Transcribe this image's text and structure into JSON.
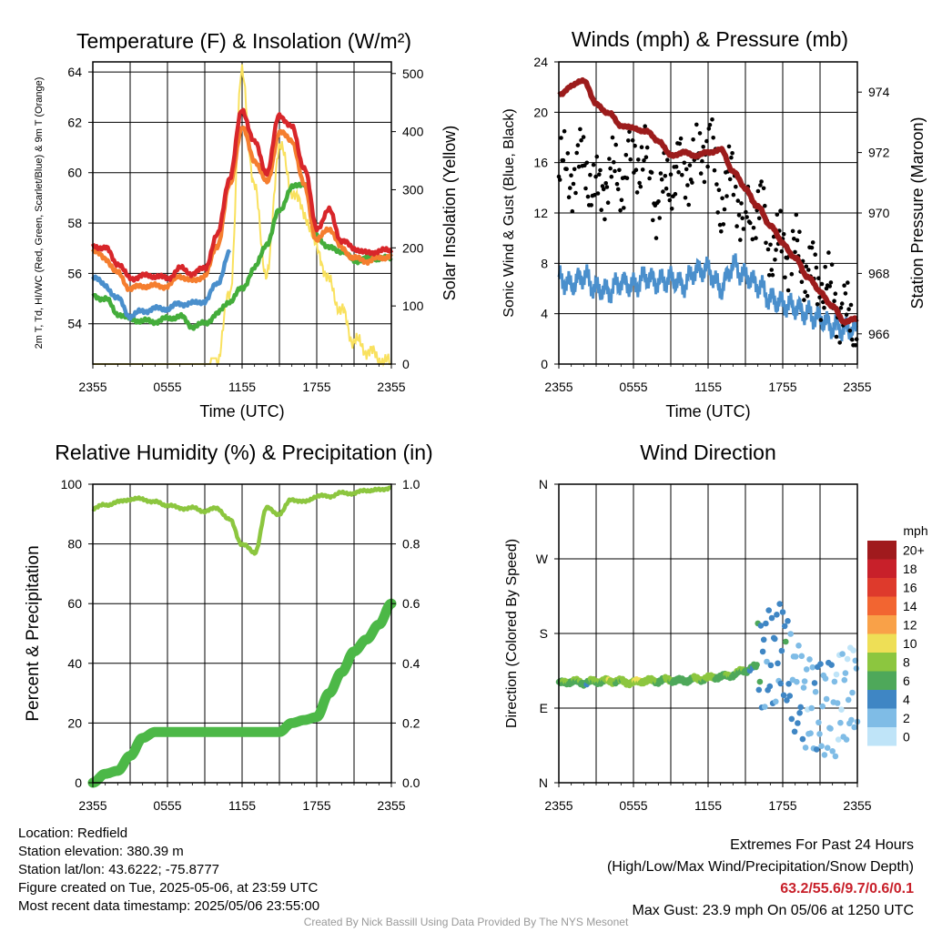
{
  "colors": {
    "temp": "#d8262a",
    "hiwc": "#f57e2f",
    "dew": "#44ad3b",
    "wetbulb": "#4a8fcc",
    "solar": "#f9e15e",
    "wind": "#4a8fcc",
    "gust": "#000000",
    "pressure": "#9c1c1c",
    "rh": "#8cc63f",
    "precip": "#4cb847"
  },
  "wind_colorbar": {
    "title": "mph",
    "labels": [
      "20+",
      "18",
      "16",
      "14",
      "12",
      "10",
      "8",
      "6",
      "4",
      "2",
      "0"
    ],
    "colors": [
      "#a01a1d",
      "#c8202a",
      "#de3a2c",
      "#f26531",
      "#f9a148",
      "#eedf56",
      "#8cc63f",
      "#4ea85a",
      "#3f86c4",
      "#7fbce6",
      "#bfe4f8"
    ]
  },
  "chart_data": [
    {
      "type": "line",
      "title": "Temperature (F) & Insolation (W/m²)",
      "xlabel": "Time (UTC)",
      "ylabel": "2m T, Td, HI/WC (Red, Green, Scarlet/Blue) & 9m T (Orange)",
      "ylabel_right": "Solar Insolation (Yellow)",
      "x_ticks": [
        "2355",
        "0555",
        "1155",
        "1755",
        "2355"
      ],
      "ylim": [
        52.4,
        64.4
      ],
      "y_ticks": [
        54,
        56,
        58,
        60,
        62,
        64
      ],
      "ylim_right": [
        0,
        520
      ],
      "y_ticks_right": [
        0,
        100,
        200,
        300,
        400,
        500
      ],
      "x_hours": [
        0,
        1,
        2,
        3,
        4,
        5,
        6,
        7,
        8,
        9,
        10,
        11,
        12,
        13,
        14,
        15,
        16,
        17,
        18,
        19,
        20,
        21,
        22,
        23,
        24
      ],
      "series": [
        {
          "name": "2m T",
          "values": [
            57.1,
            57.0,
            56.4,
            55.8,
            55.9,
            55.9,
            55.8,
            56.2,
            56.0,
            56.2,
            57.5,
            59.8,
            62.5,
            61.2,
            60.0,
            62.3,
            61.8,
            60.2,
            57.8,
            58.5,
            57.3,
            57.0,
            56.8,
            56.9,
            56.9
          ]
        },
        {
          "name": "9m T",
          "values": [
            56.9,
            56.6,
            56.0,
            55.4,
            55.5,
            55.5,
            55.5,
            55.9,
            55.7,
            55.9,
            57.1,
            59.5,
            61.8,
            60.5,
            59.6,
            61.6,
            61.3,
            59.5,
            57.3,
            57.8,
            57.0,
            56.6,
            56.5,
            56.6,
            56.7
          ]
        },
        {
          "name": "Td",
          "values": [
            55.1,
            55.0,
            54.4,
            54.2,
            54.1,
            54.1,
            54.2,
            54.3,
            53.9,
            54.0,
            54.4,
            54.9,
            55.4,
            56.2,
            57.2,
            58.5,
            59.4,
            59.6,
            57.5,
            57.0,
            56.9,
            56.5,
            56.6,
            56.6,
            56.6
          ]
        },
        {
          "name": "HI/WC",
          "values": [
            55.9,
            55.5,
            55.0,
            54.3,
            54.5,
            54.6,
            54.6,
            54.8,
            54.8,
            54.9,
            55.6,
            56.8,
            null,
            null,
            null,
            null,
            null,
            null,
            null,
            null,
            null,
            null,
            null,
            null,
            null
          ]
        },
        {
          "name": "Solar Insolation",
          "values": [
            0,
            0,
            0,
            0,
            0,
            0,
            0,
            0,
            0,
            0,
            10,
            120,
            500,
            300,
            150,
            380,
            300,
            260,
            200,
            140,
            90,
            40,
            25,
            10,
            0
          ]
        }
      ]
    },
    {
      "type": "line",
      "title": "Winds (mph) & Pressure (mb)",
      "xlabel": "Time (UTC)",
      "ylabel": "Sonic Wind & Gust (Blue, Black)",
      "ylabel_right": "Station Pressure (Maroon)",
      "x_ticks": [
        "2355",
        "0555",
        "1155",
        "1755",
        "2355"
      ],
      "ylim": [
        0,
        24
      ],
      "y_ticks": [
        0,
        4,
        8,
        12,
        16,
        20,
        24
      ],
      "ylim_right": [
        965.0,
        975.0
      ],
      "y_ticks_right": [
        966,
        968,
        970,
        972,
        974
      ],
      "x_hours": [
        0,
        1,
        2,
        3,
        4,
        5,
        6,
        7,
        8,
        9,
        10,
        11,
        12,
        13,
        14,
        15,
        16,
        17,
        18,
        19,
        20,
        21,
        22,
        23,
        24
      ],
      "series": [
        {
          "name": "Sonic Wind",
          "values": [
            6.8,
            6.3,
            7.0,
            6.0,
            5.8,
            6.5,
            6.2,
            6.9,
            6.5,
            6.8,
            6.3,
            7.4,
            7.5,
            6.0,
            7.8,
            7.0,
            6.3,
            5.2,
            4.8,
            4.5,
            4.0,
            3.6,
            3.0,
            2.8,
            2.7
          ]
        },
        {
          "name": "Gust",
          "values": [
            15.5,
            15.2,
            16.1,
            13.5,
            15.0,
            14.8,
            16.5,
            16.0,
            12.8,
            15.0,
            15.5,
            15.8,
            18.0,
            13.0,
            14.8,
            11.0,
            13.0,
            9.5,
            9.2,
            8.8,
            7.5,
            6.5,
            5.5,
            3.8,
            3.5
          ]
        },
        {
          "name": "Station Pressure",
          "values": [
            973.9,
            974.2,
            974.4,
            973.6,
            973.3,
            972.9,
            972.8,
            972.7,
            972.4,
            971.9,
            972.0,
            971.9,
            972.0,
            972.1,
            971.4,
            970.8,
            970.2,
            969.6,
            969.0,
            968.5,
            967.9,
            967.4,
            966.9,
            966.4,
            966.5
          ]
        }
      ]
    },
    {
      "type": "line",
      "title": "Relative Humidity (%) & Precipitation (in)",
      "ylabel": "Percent & Precipitation",
      "x_ticks": [
        "2355",
        "0555",
        "1155",
        "1755",
        "2355"
      ],
      "ylim": [
        0,
        100
      ],
      "y_ticks": [
        0,
        20,
        40,
        60,
        80,
        100
      ],
      "ylim_right": [
        0,
        1.0
      ],
      "y_ticks_right": [
        "0.0",
        "0.2",
        "0.4",
        "0.6",
        "0.8",
        "1.0"
      ],
      "x_hours": [
        0,
        1,
        2,
        3,
        4,
        5,
        6,
        7,
        8,
        9,
        10,
        11,
        12,
        13,
        14,
        15,
        16,
        17,
        18,
        19,
        20,
        21,
        22,
        23,
        24
      ],
      "series": [
        {
          "name": "Relative Humidity",
          "values": [
            92,
            93,
            94,
            95,
            95,
            94,
            93,
            92,
            92,
            91,
            92,
            88,
            80,
            77,
            92,
            90,
            95,
            94,
            96,
            96,
            97,
            97,
            98,
            98,
            99
          ]
        },
        {
          "name": "Precipitation",
          "values": [
            0.0,
            0.03,
            0.04,
            0.09,
            0.15,
            0.17,
            0.17,
            0.17,
            0.17,
            0.17,
            0.17,
            0.17,
            0.17,
            0.17,
            0.17,
            0.17,
            0.2,
            0.21,
            0.22,
            0.3,
            0.37,
            0.44,
            0.48,
            0.53,
            0.6
          ]
        }
      ]
    },
    {
      "type": "scatter",
      "title": "Wind Direction",
      "ylabel": "Direction (Colored By Speed)",
      "x_ticks": [
        "2355",
        "0555",
        "1155",
        "1755",
        "2355"
      ],
      "y_ticks": [
        "N",
        "E",
        "S",
        "W",
        "N"
      ],
      "ylim": [
        0,
        360
      ],
      "x_hours": [
        0,
        1,
        2,
        3,
        4,
        5,
        6,
        7,
        8,
        9,
        10,
        11,
        12,
        13,
        14,
        15,
        16,
        17,
        18,
        19,
        20,
        21,
        22,
        23,
        24
      ],
      "series": [
        {
          "name": "Direction",
          "values": [
            120,
            122,
            121,
            122,
            123,
            122,
            121,
            123,
            123,
            124,
            123,
            125,
            126,
            128,
            130,
            136,
            140,
            150,
            160,
            115,
            95,
            90,
            88,
            105,
            120
          ]
        },
        {
          "name": "Speed",
          "values": [
            6,
            7,
            6,
            7,
            8,
            7,
            9,
            8,
            7,
            7,
            6,
            7,
            8,
            6,
            7,
            6,
            5,
            3,
            4,
            3,
            2,
            3,
            2,
            1,
            2
          ]
        }
      ]
    }
  ],
  "info": {
    "location": "Location: Redfield",
    "elevation": "Station elevation: 380.39 m",
    "latlon": "Station lat/lon: 43.6222; -75.8777",
    "created": "Figure created on Tue, 2025-05-06, at 23:59 UTC",
    "recent": "Most recent data timestamp: 2025/05/06 23:55:00"
  },
  "extremes": {
    "title": "Extremes For Past 24 Hours",
    "subtitle": "(High/Low/Max Wind/Precipitation/Snow Depth)",
    "values": "63.2/55.6/9.7/0.6/0.1",
    "gust": "Max Gust: 23.9 mph On 05/06 at 1250 UTC"
  },
  "credit": "Created By Nick Bassill Using Data Provided By The NYS Mesonet"
}
